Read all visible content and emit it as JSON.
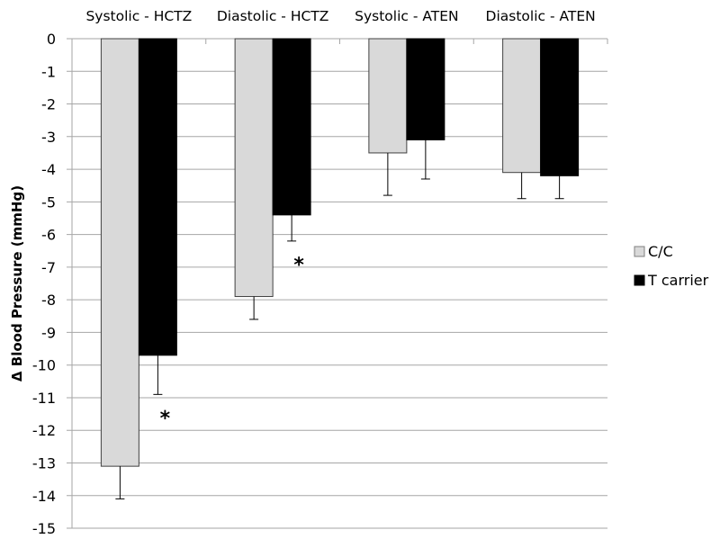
{
  "chart_data": {
    "type": "bar",
    "title": "",
    "xlabel": "",
    "ylabel": "Δ Blood Pressure (mmHg)",
    "ylim": [
      -15,
      0
    ],
    "yticks": [
      0,
      -1,
      -2,
      -3,
      -4,
      -5,
      -6,
      -7,
      -8,
      -9,
      -10,
      -11,
      -12,
      -13,
      -14,
      -15
    ],
    "grid": true,
    "legend_position": "right",
    "categories": [
      "Systolic - HCTZ",
      "Diastolic - HCTZ",
      "Systolic - ATEN",
      "Diastolic - ATEN"
    ],
    "series": [
      {
        "name": "C/C",
        "color": "#d9d9d9",
        "values": [
          -13.1,
          -7.9,
          -3.5,
          -4.1
        ],
        "error": [
          1.0,
          0.7,
          1.3,
          0.8
        ]
      },
      {
        "name": "T carrier",
        "color": "#000000",
        "values": [
          -9.7,
          -5.4,
          -3.1,
          -4.2
        ],
        "error": [
          1.2,
          0.8,
          1.2,
          0.7
        ]
      }
    ],
    "annotations": [
      {
        "text": "*",
        "category": "Systolic - HCTZ",
        "series": "T carrier",
        "y": -11.5
      },
      {
        "text": "*",
        "category": "Diastolic - HCTZ",
        "series": "T carrier",
        "y": -6.8
      }
    ]
  }
}
